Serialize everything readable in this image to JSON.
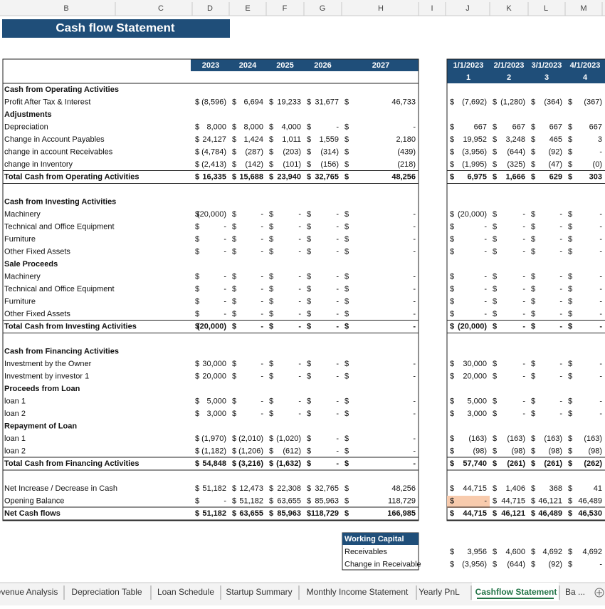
{
  "columns": [
    "B",
    "C",
    "D",
    "E",
    "F",
    "G",
    "H",
    "I",
    "J",
    "K",
    "L",
    "M"
  ],
  "title": "Cash flow Statement",
  "currency": "$",
  "years": [
    "2023",
    "2024",
    "2025",
    "2026",
    "2027"
  ],
  "months": [
    {
      "date": "1/1/2023",
      "index": 1
    },
    {
      "date": "2/1/2023",
      "index": 2
    },
    {
      "date": "3/1/2023",
      "index": 3
    },
    {
      "date": "4/1/2023",
      "index": 4
    }
  ],
  "rows": [
    {
      "label": "Cash from Operating Activities",
      "bold": true
    },
    {
      "label": "Profit After Tax & Interest",
      "annual": [
        "(8,596)",
        "6,694",
        "19,233",
        "31,677",
        "46,733"
      ],
      "monthly": [
        "(7,692)",
        "(1,280)",
        "(364)",
        "(367)"
      ]
    },
    {
      "label": "Adjustments",
      "bold": true
    },
    {
      "label": "Depreciation",
      "annual": [
        "8,000",
        "8,000",
        "4,000",
        "-",
        "-"
      ],
      "monthly": [
        "667",
        "667",
        "667",
        "667"
      ]
    },
    {
      "label": "Change in Account Payables",
      "annual": [
        "24,127",
        "1,424",
        "1,011",
        "1,559",
        "2,180"
      ],
      "monthly": [
        "19,952",
        "3,248",
        "465",
        "3"
      ]
    },
    {
      "label": "change in account Receivables",
      "annual": [
        "(4,784)",
        "(287)",
        "(203)",
        "(314)",
        "(439)"
      ],
      "monthly": [
        "(3,956)",
        "(644)",
        "(92)",
        "-"
      ]
    },
    {
      "label": "change in  Inventory",
      "annual": [
        "(2,413)",
        "(142)",
        "(101)",
        "(156)",
        "(218)"
      ],
      "monthly": [
        "(1,995)",
        "(325)",
        "(47)",
        "(0)"
      ]
    },
    {
      "label": "Total Cash from Operating Activities",
      "bold": true,
      "annual": [
        "16,335",
        "15,688",
        "23,940",
        "32,765",
        "48,256"
      ],
      "monthly": [
        "6,975",
        "1,666",
        "629",
        "303"
      ]
    },
    null,
    {
      "label": "Cash from Investing Activities",
      "bold": true
    },
    {
      "label": "Machinery",
      "annual": [
        "(20,000)",
        "-",
        "-",
        "-",
        "-"
      ],
      "monthly": [
        "(20,000)",
        "-",
        "-",
        "-"
      ]
    },
    {
      "label": "Technical and Office Equipment",
      "annual": [
        "-",
        "-",
        "-",
        "-",
        "-"
      ],
      "monthly": [
        "-",
        "-",
        "-",
        "-"
      ]
    },
    {
      "label": "Furniture",
      "annual": [
        "-",
        "-",
        "-",
        "-",
        "-"
      ],
      "monthly": [
        "-",
        "-",
        "-",
        "-"
      ]
    },
    {
      "label": "Other Fixed Assets",
      "annual": [
        "-",
        "-",
        "-",
        "-",
        "-"
      ],
      "monthly": [
        "-",
        "-",
        "-",
        "-"
      ]
    },
    {
      "label": "Sale Proceeds",
      "bold": true
    },
    {
      "label": "Machinery",
      "annual": [
        "-",
        "-",
        "-",
        "-",
        "-"
      ],
      "monthly": [
        "-",
        "-",
        "-",
        "-"
      ]
    },
    {
      "label": "Technical and Office Equipment",
      "annual": [
        "-",
        "-",
        "-",
        "-",
        "-"
      ],
      "monthly": [
        "-",
        "-",
        "-",
        "-"
      ]
    },
    {
      "label": "Furniture",
      "annual": [
        "-",
        "-",
        "-",
        "-",
        "-"
      ],
      "monthly": [
        "-",
        "-",
        "-",
        "-"
      ]
    },
    {
      "label": "Other Fixed Assets",
      "annual": [
        "-",
        "-",
        "-",
        "-",
        "-"
      ],
      "monthly": [
        "-",
        "-",
        "-",
        "-"
      ]
    },
    {
      "label": "Total Cash from Investing Activities",
      "bold": true,
      "annual": [
        "(20,000)",
        "-",
        "-",
        "-",
        "-"
      ],
      "monthly": [
        "(20,000)",
        "-",
        "-",
        "-"
      ]
    },
    null,
    {
      "label": "Cash from Financing Activities",
      "bold": true
    },
    {
      "label": "Investment by the Owner",
      "annual": [
        "30,000",
        "-",
        "-",
        "-",
        "-"
      ],
      "monthly": [
        "30,000",
        "-",
        "-",
        "-"
      ]
    },
    {
      "label": "Investment by investor 1",
      "annual": [
        "20,000",
        "-",
        "-",
        "-",
        "-"
      ],
      "monthly": [
        "20,000",
        "-",
        "-",
        "-"
      ]
    },
    {
      "label": "Proceeds from Loan",
      "bold": true
    },
    {
      "label": "loan 1",
      "annual": [
        "5,000",
        "-",
        "-",
        "-",
        "-"
      ],
      "monthly": [
        "5,000",
        "-",
        "-",
        "-"
      ]
    },
    {
      "label": "loan 2",
      "annual": [
        "3,000",
        "-",
        "-",
        "-",
        "-"
      ],
      "monthly": [
        "3,000",
        "-",
        "-",
        "-"
      ]
    },
    {
      "label": "Repayment of Loan",
      "bold": true
    },
    {
      "label": "loan 1",
      "annual": [
        "(1,970)",
        "(2,010)",
        "(1,020)",
        "-",
        "-"
      ],
      "monthly": [
        "(163)",
        "(163)",
        "(163)",
        "(163)"
      ]
    },
    {
      "label": "loan 2",
      "annual": [
        "(1,182)",
        "(1,206)",
        "(612)",
        "-",
        "-"
      ],
      "monthly": [
        "(98)",
        "(98)",
        "(98)",
        "(98)"
      ]
    },
    {
      "label": "Total Cash from Financing Activities",
      "bold": true,
      "annual": [
        "54,848",
        "(3,216)",
        "(1,632)",
        "-",
        "-"
      ],
      "monthly": [
        "57,740",
        "(261)",
        "(261)",
        "(262)"
      ]
    },
    null,
    {
      "label": "Net Increase / Decrease in Cash",
      "annual": [
        "51,182",
        "12,473",
        "22,308",
        "32,765",
        "48,256"
      ],
      "monthly": [
        "44,715",
        "1,406",
        "368",
        "41"
      ]
    },
    {
      "label": "Opening Balance",
      "annual": [
        "-",
        "51,182",
        "63,655",
        "85,963",
        "118,729"
      ],
      "monthly": [
        "-",
        "44,715",
        "46,121",
        "46,489"
      ]
    },
    {
      "label": "Net Cash flows",
      "bold": true,
      "annual": [
        "51,182",
        "63,655",
        "85,963",
        "118,729",
        "166,985"
      ],
      "monthly": [
        "44,715",
        "46,121",
        "46,489",
        "46,530"
      ]
    }
  ],
  "working_capital": {
    "title": "Working Capital",
    "rows": [
      {
        "label": "Receivables",
        "monthly": [
          "3,956",
          "4,600",
          "4,692",
          "4,692"
        ]
      },
      {
        "label": "Change in Receivable",
        "monthly": [
          "(3,956)",
          "(644)",
          "(92)",
          "-"
        ]
      }
    ]
  },
  "tabs": [
    "evenue Analysis",
    "Depreciation Table",
    "Loan Schedule",
    "Startup Summary",
    "Monthly Income Statement",
    "Yearly PnL",
    "Cashflow Statement",
    "Ba ..."
  ],
  "active_tab": 6
}
